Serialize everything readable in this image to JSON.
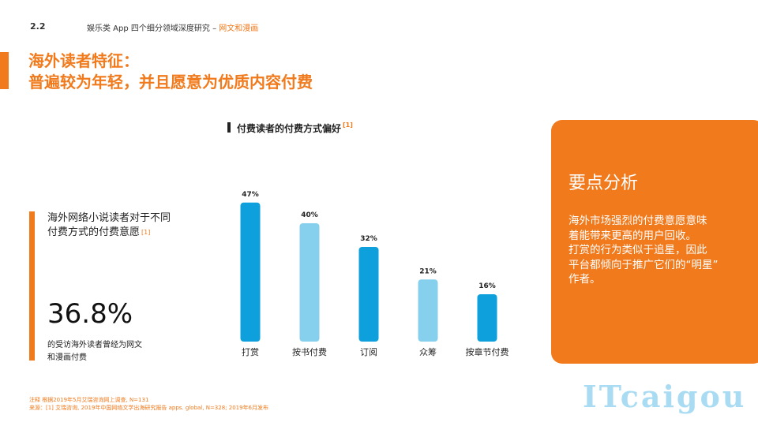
{
  "header": {
    "section_number": "2.2",
    "section_title_main": "娱乐类 App 四个细分领域深度研究 – ",
    "section_title_highlight": "网文和漫画"
  },
  "title": {
    "line1": "海外读者特征：",
    "line2": "普遍较为年轻，并且愿意为优质内容付费"
  },
  "left": {
    "heading_line1": "海外网络小说读者对于不同",
    "heading_line2": "付费方式的付费意愿",
    "heading_ref": "[1]",
    "stat_value": "36.8%",
    "stat_desc_line1": "的受访海外读者曾经为网文",
    "stat_desc_line2": "和漫画付费"
  },
  "chart_title": {
    "text": "付费读者的付费方式偏好",
    "ref": "[1]"
  },
  "chart_data": {
    "type": "bar",
    "categories": [
      "打赏",
      "按书付费",
      "订阅",
      "众筹",
      "按章节付费"
    ],
    "values": [
      47,
      40,
      32,
      21,
      16
    ],
    "value_labels": [
      "47%",
      "40%",
      "32%",
      "21%",
      "16%"
    ],
    "colors": [
      "#0ea0dc",
      "#86d0ee",
      "#0ea0dc",
      "#86d0ee",
      "#0ea0dc"
    ],
    "ylim": [
      0,
      50
    ],
    "grid": false
  },
  "panel": {
    "title": "要点分析",
    "line1": "海外市场强烈的付费意愿意味",
    "line2": "着能带来更高的用户回收。",
    "line3": "打赏的行为类似于追星，因此",
    "line4": "平台都倾向于推广它们的“明星”",
    "line5": "作者。"
  },
  "footer": {
    "note": "注释  根据2019年5月艾瑞咨询网上调查, N=131",
    "source": "来源：[1] 艾瑞咨询, 2019年中国网络文学出海研究报告 apps. global, N=328; 2019年6月发布"
  },
  "watermark": "ITcaigou",
  "colors": {
    "accent": "#f07a1c",
    "bar_dark": "#0ea0dc",
    "bar_light": "#86d0ee"
  }
}
